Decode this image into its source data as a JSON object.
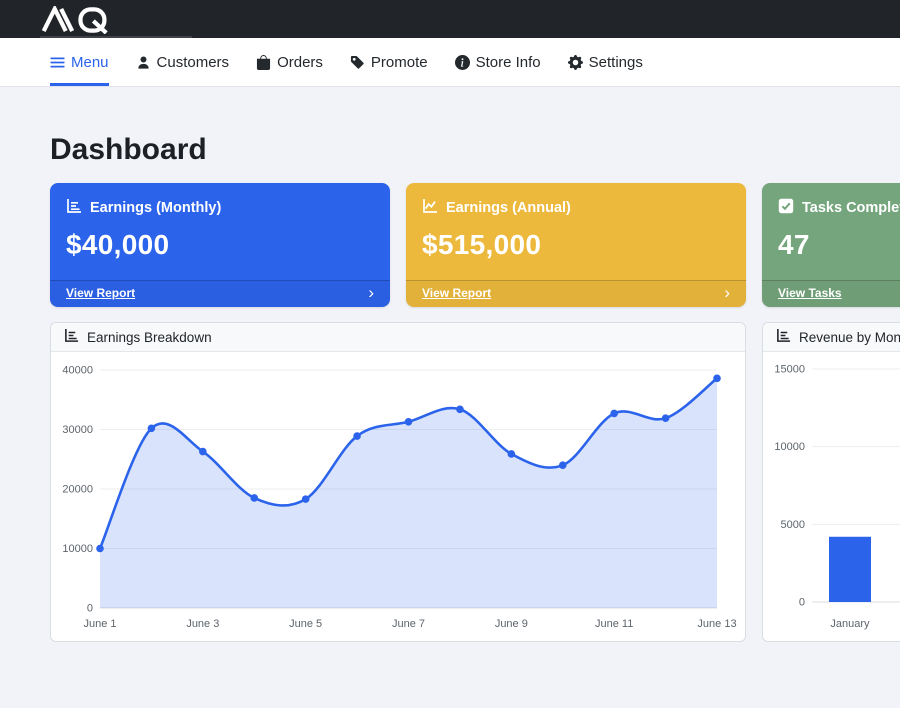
{
  "topbar": {
    "logo": "AQ"
  },
  "nav": {
    "active_color": "#2b64eb",
    "items": [
      {
        "label": "Menu",
        "icon": "hamburger-icon",
        "active": true
      },
      {
        "label": "Customers",
        "icon": "person-icon",
        "active": false
      },
      {
        "label": "Orders",
        "icon": "bag-icon",
        "active": false
      },
      {
        "label": "Promote",
        "icon": "tag-icon",
        "active": false
      },
      {
        "label": "Store Info",
        "icon": "info-circle-icon",
        "active": false
      },
      {
        "label": "Settings",
        "icon": "gear-icon",
        "active": false
      }
    ]
  },
  "page": {
    "title": "Dashboard"
  },
  "stat_cards": [
    {
      "title": "Earnings (Monthly)",
      "value": "$40,000",
      "link_label": "View Report",
      "chevron": "›",
      "color": "#2b64eb",
      "icon": "bar-chart-icon"
    },
    {
      "title": "Earnings (Annual)",
      "value": "$515,000",
      "link_label": "View Report",
      "chevron": "›",
      "color": "#edb93d",
      "icon": "line-chart-icon"
    },
    {
      "title": "Tasks Completed",
      "value": "47",
      "link_label": "View Tasks",
      "chevron": "›",
      "color": "#74a57c",
      "icon": "check-square-icon"
    }
  ],
  "chart_data": [
    {
      "type": "line",
      "title": "Earnings Breakdown",
      "x": [
        "June 1",
        "June 2",
        "June 3",
        "June 4",
        "June 5",
        "June 6",
        "June 7",
        "June 8",
        "June 9",
        "June 10",
        "June 11",
        "June 12",
        "June 13"
      ],
      "values": [
        10000,
        30200,
        26300,
        18500,
        18300,
        28900,
        31300,
        33400,
        25900,
        24000,
        32700,
        31900,
        38600
      ],
      "xtick_every": 2,
      "ylim": [
        0,
        40000
      ],
      "yticks": [
        0,
        10000,
        20000,
        30000,
        40000
      ],
      "grid": true,
      "legend": false,
      "line_color": "#2b64eb",
      "fill_color": "rgba(43,100,235,0.18)"
    },
    {
      "type": "bar",
      "title": "Revenue by Month",
      "categories": [
        "January"
      ],
      "values": [
        4200
      ],
      "ylim": [
        0,
        15000
      ],
      "yticks": [
        0,
        5000,
        10000,
        15000
      ],
      "grid": true,
      "legend": false,
      "bar_color": "#2b64eb"
    }
  ]
}
